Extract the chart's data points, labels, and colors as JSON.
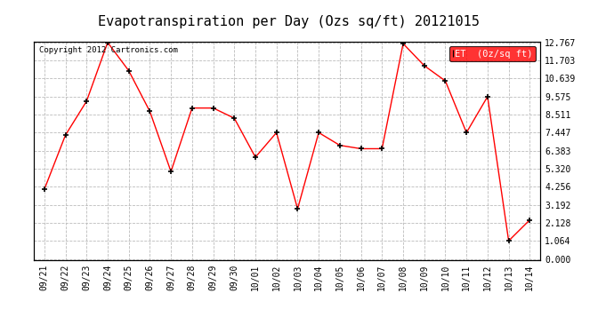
{
  "title": "Evapotranspiration per Day (Ozs sq/ft) 20121015",
  "copyright": "Copyright 2012 Cartronics.com",
  "legend_label": "ET  (0z/sq ft)",
  "x_labels": [
    "09/21",
    "09/22",
    "09/23",
    "09/24",
    "09/25",
    "09/26",
    "09/27",
    "09/28",
    "09/29",
    "09/30",
    "10/01",
    "10/02",
    "10/03",
    "10/04",
    "10/05",
    "10/06",
    "10/07",
    "10/08",
    "10/09",
    "10/10",
    "10/11",
    "10/12",
    "10/13",
    "10/14"
  ],
  "y_values": [
    4.1,
    7.3,
    9.3,
    12.77,
    11.1,
    8.7,
    5.15,
    8.9,
    8.9,
    8.3,
    6.0,
    7.45,
    2.95,
    7.45,
    6.7,
    6.5,
    6.5,
    12.7,
    11.4,
    10.5,
    7.45,
    9.575,
    1.064,
    2.3
  ],
  "y_ticks": [
    0.0,
    1.064,
    2.128,
    3.192,
    4.256,
    5.32,
    6.383,
    7.447,
    8.511,
    9.575,
    10.639,
    11.703,
    12.767
  ],
  "line_color": "#ff0000",
  "marker_color": "black",
  "bg_color": "#ffffff",
  "plot_bg_color": "#ffffff",
  "grid_color": "#bbbbbb",
  "title_fontsize": 11,
  "tick_fontsize": 7,
  "copyright_fontsize": 6.5,
  "legend_bg": "#ff0000",
  "legend_text_color": "#ffffff",
  "legend_fontsize": 7.5
}
